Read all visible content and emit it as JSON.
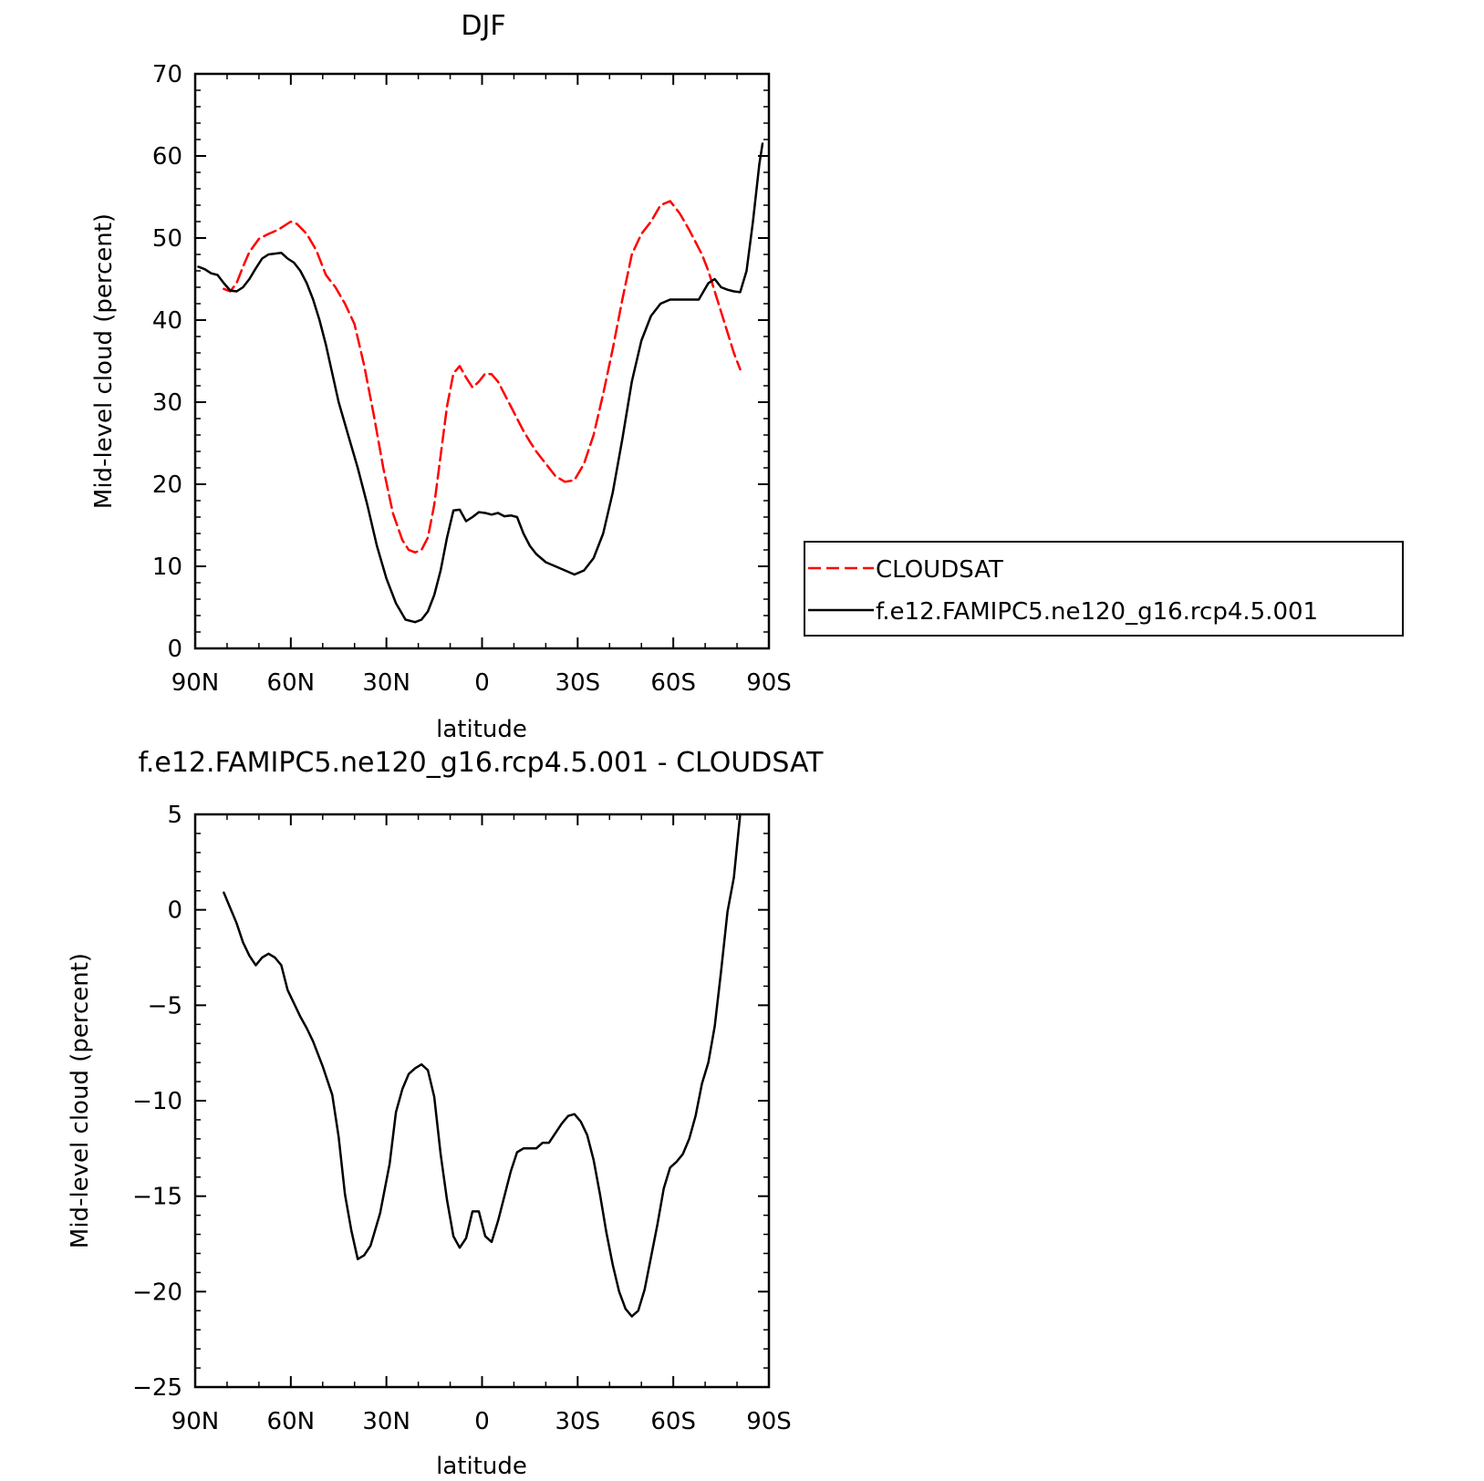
{
  "colors": {
    "cloudsat": "#ff0000",
    "model": "#000000",
    "axis": "#000000",
    "background": "#ffffff"
  },
  "chart_data": [
    {
      "type": "line",
      "title": "DJF",
      "xlabel": "latitude",
      "ylabel": "Mid-level cloud (percent)",
      "xlim": [
        90,
        -90
      ],
      "ylim": [
        0,
        70
      ],
      "x_ticks": [
        90,
        60,
        30,
        0,
        -30,
        -60,
        -90
      ],
      "x_tick_labels": [
        "90N",
        "60N",
        "30N",
        "0",
        "30S",
        "60S",
        "90S"
      ],
      "y_ticks": [
        0,
        10,
        20,
        30,
        40,
        50,
        60,
        70
      ],
      "y_tick_labels": [
        "0",
        "10",
        "20",
        "30",
        "40",
        "50",
        "60",
        "70"
      ],
      "legend": {
        "placement": "right",
        "entries": [
          "CLOUDSAT",
          "f.e12.FAMIPC5.ne120_g16.rcp4.5.001"
        ]
      },
      "series": [
        {
          "name": "CLOUDSAT",
          "color": "#ff0000",
          "dash": "dashed",
          "x": [
            81,
            79,
            77,
            75,
            73,
            70,
            67,
            64,
            62,
            60,
            58,
            55,
            52,
            49,
            46,
            43,
            40,
            37,
            34,
            31,
            28,
            25,
            23,
            21,
            19,
            17,
            15,
            13,
            11,
            9,
            7,
            5,
            3,
            1,
            -1,
            -3,
            -5,
            -7,
            -9,
            -11,
            -13,
            -15,
            -17,
            -20,
            -23,
            -26,
            -29,
            -32,
            -35,
            -38,
            -41,
            -44,
            -47,
            -50,
            -53,
            -56,
            -59,
            -62,
            -65,
            -67,
            -69,
            -71,
            -73,
            -75,
            -77,
            -79,
            -81
          ],
          "y": [
            43.8,
            43.5,
            44.5,
            46.5,
            48.3,
            49.9,
            50.5,
            51.0,
            51.5,
            52.0,
            51.7,
            50.5,
            48.5,
            45.5,
            44.0,
            42.0,
            39.5,
            34.5,
            28.5,
            22.0,
            16.5,
            13.2,
            12.0,
            11.7,
            12.0,
            13.5,
            17.5,
            23.5,
            29.5,
            33.5,
            34.4,
            33.0,
            31.8,
            32.5,
            33.5,
            33.4,
            32.5,
            31.0,
            29.5,
            28.0,
            26.5,
            25.2,
            24.0,
            22.5,
            21.0,
            20.3,
            20.5,
            22.5,
            26.0,
            31.0,
            36.5,
            42.5,
            48.0,
            50.5,
            52.0,
            54.0,
            54.5,
            53.0,
            51.0,
            49.5,
            48.0,
            46.0,
            43.5,
            41.0,
            38.5,
            36.0,
            34.0
          ]
        },
        {
          "name": "f.e12.FAMIPC5.ne120_g16.rcp4.5.001",
          "color": "#000000",
          "dash": "solid",
          "x": [
            89,
            87,
            85,
            83,
            81,
            79,
            77,
            75,
            73,
            71,
            69,
            67,
            65,
            63,
            61,
            59,
            57,
            55,
            53,
            51,
            49,
            47,
            45,
            42,
            39,
            36,
            33,
            30,
            27,
            24,
            21,
            19,
            17,
            15,
            13,
            11,
            9,
            7,
            5,
            3,
            1,
            -1,
            -3,
            -5,
            -7,
            -9,
            -11,
            -13,
            -15,
            -17,
            -20,
            -23,
            -26,
            -29,
            -32,
            -35,
            -38,
            -41,
            -44,
            -47,
            -50,
            -53,
            -56,
            -59,
            -62,
            -65,
            -68,
            -71,
            -73,
            -75,
            -77,
            -79,
            -81,
            -83,
            -85,
            -87,
            -88
          ],
          "y": [
            46.5,
            46.2,
            45.7,
            45.5,
            44.5,
            43.6,
            43.5,
            44.0,
            45.0,
            46.3,
            47.5,
            48.0,
            48.1,
            48.2,
            47.5,
            47.0,
            46.0,
            44.5,
            42.5,
            40.0,
            37.0,
            33.5,
            30.0,
            26.0,
            22.0,
            17.5,
            12.5,
            8.5,
            5.5,
            3.5,
            3.2,
            3.5,
            4.5,
            6.5,
            9.5,
            13.5,
            16.8,
            16.9,
            15.5,
            16.0,
            16.6,
            16.5,
            16.3,
            16.5,
            16.1,
            16.2,
            16.0,
            14.0,
            12.5,
            11.5,
            10.5,
            10.0,
            9.5,
            9.0,
            9.5,
            11.0,
            14.0,
            19.0,
            25.5,
            32.5,
            37.5,
            40.5,
            42.0,
            42.5,
            42.5,
            42.5,
            42.5,
            44.5,
            45.0,
            44.0,
            43.7,
            43.5,
            43.4,
            46.0,
            52.0,
            59.0,
            61.5
          ]
        }
      ]
    },
    {
      "type": "line",
      "title": "f.e12.FAMIPC5.ne120_g16.rcp4.5.001 - CLOUDSAT",
      "xlabel": "latitude",
      "ylabel": "Mid-level cloud (percent)",
      "xlim": [
        90,
        -90
      ],
      "ylim": [
        -25,
        5
      ],
      "x_ticks": [
        90,
        60,
        30,
        0,
        -30,
        -60,
        -90
      ],
      "x_tick_labels": [
        "90N",
        "60N",
        "30N",
        "0",
        "30S",
        "60S",
        "90S"
      ],
      "y_ticks": [
        -25,
        -20,
        -15,
        -10,
        -5,
        0,
        5
      ],
      "y_tick_labels": [
        "−25",
        "−20",
        "−15",
        "−10",
        "−5",
        "0",
        "5"
      ],
      "series": [
        {
          "color": "#000000",
          "dash": "solid",
          "x": [
            81,
            79,
            77,
            75,
            73,
            71,
            69,
            67,
            65,
            63,
            61,
            59,
            57,
            55,
            53,
            50,
            47,
            45,
            43,
            41,
            39,
            37,
            35,
            32,
            29,
            27,
            25,
            23,
            21,
            19,
            17,
            15,
            13,
            11,
            9,
            7,
            5,
            3,
            1,
            -1,
            -3,
            -5,
            -7,
            -9,
            -11,
            -13,
            -15,
            -17,
            -19,
            -21,
            -23,
            -25,
            -27,
            -29,
            -31,
            -33,
            -35,
            -37,
            -39,
            -41,
            -43,
            -45,
            -47,
            -49,
            -51,
            -53,
            -55,
            -57,
            -59,
            -61,
            -63,
            -65,
            -67,
            -69,
            -71,
            -73,
            -75,
            -77,
            -79,
            -81
          ],
          "y": [
            0.9,
            0.1,
            -0.7,
            -1.7,
            -2.4,
            -2.9,
            -2.5,
            -2.3,
            -2.5,
            -2.9,
            -4.2,
            -4.9,
            -5.6,
            -6.2,
            -6.9,
            -8.2,
            -9.7,
            -11.9,
            -14.9,
            -16.8,
            -18.3,
            -18.1,
            -17.6,
            -15.9,
            -13.3,
            -10.6,
            -9.4,
            -8.6,
            -8.3,
            -8.1,
            -8.4,
            -9.8,
            -12.8,
            -15.2,
            -17.1,
            -17.7,
            -17.2,
            -15.8,
            -15.8,
            -17.1,
            -17.4,
            -16.3,
            -15.0,
            -13.7,
            -12.7,
            -12.5,
            -12.5,
            -12.5,
            -12.2,
            -12.2,
            -11.7,
            -11.2,
            -10.8,
            -10.7,
            -11.1,
            -11.8,
            -13.1,
            -14.9,
            -16.9,
            -18.6,
            -20.0,
            -20.9,
            -21.3,
            -21.0,
            -19.9,
            -18.2,
            -16.5,
            -14.6,
            -13.5,
            -13.2,
            -12.8,
            -12.0,
            -10.8,
            -9.1,
            -8.0,
            -6.1,
            -3.2,
            -0.1,
            1.7,
            5.0
          ]
        }
      ]
    }
  ]
}
